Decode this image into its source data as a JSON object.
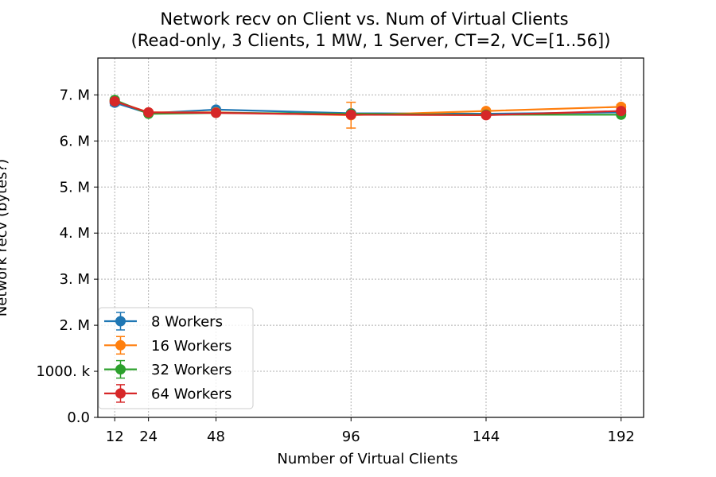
{
  "chart_data": {
    "type": "line",
    "title_line1": "Network recv on Client vs. Num of Virtual Clients",
    "title_line2": "(Read-only, 3 Clients, 1 MW, 1 Server, CT=2, VC=[1..56])",
    "xlabel": "Number of Virtual Clients",
    "ylabel": "Network recv (bytes?)",
    "x": [
      12,
      24,
      48,
      96,
      144,
      192
    ],
    "xlim": [
      6,
      200
    ],
    "ylim": [
      0,
      7800000
    ],
    "xticks": [
      12,
      24,
      48,
      96,
      144,
      192
    ],
    "xtick_labels": [
      "12",
      "24",
      "48",
      "96",
      "144",
      "192"
    ],
    "yticks": [
      0,
      1000000,
      2000000,
      3000000,
      4000000,
      5000000,
      6000000,
      7000000
    ],
    "ytick_labels": [
      "0.0",
      "1000. k",
      "2. M",
      "3. M",
      "4. M",
      "5. M",
      "6. M",
      "7. M"
    ],
    "grid": true,
    "legend_position": "lower-left",
    "series": [
      {
        "name": "8 Workers",
        "color": "#1f77b4",
        "values": [
          6830000,
          6600000,
          6680000,
          6600000,
          6590000,
          6620000
        ],
        "errors": [
          60000,
          30000,
          30000,
          40000,
          30000,
          40000
        ]
      },
      {
        "name": "16 Workers",
        "color": "#ff7f0e",
        "values": [
          6870000,
          6620000,
          6620000,
          6560000,
          6650000,
          6740000
        ],
        "errors": [
          40000,
          30000,
          30000,
          280000,
          30000,
          50000
        ]
      },
      {
        "name": "32 Workers",
        "color": "#2ca02c",
        "values": [
          6890000,
          6590000,
          6610000,
          6590000,
          6570000,
          6570000
        ],
        "errors": [
          40000,
          30000,
          30000,
          30000,
          30000,
          30000
        ]
      },
      {
        "name": "64 Workers",
        "color": "#d62728",
        "values": [
          6860000,
          6620000,
          6610000,
          6570000,
          6560000,
          6650000
        ],
        "errors": [
          40000,
          30000,
          30000,
          40000,
          30000,
          40000
        ]
      }
    ]
  }
}
